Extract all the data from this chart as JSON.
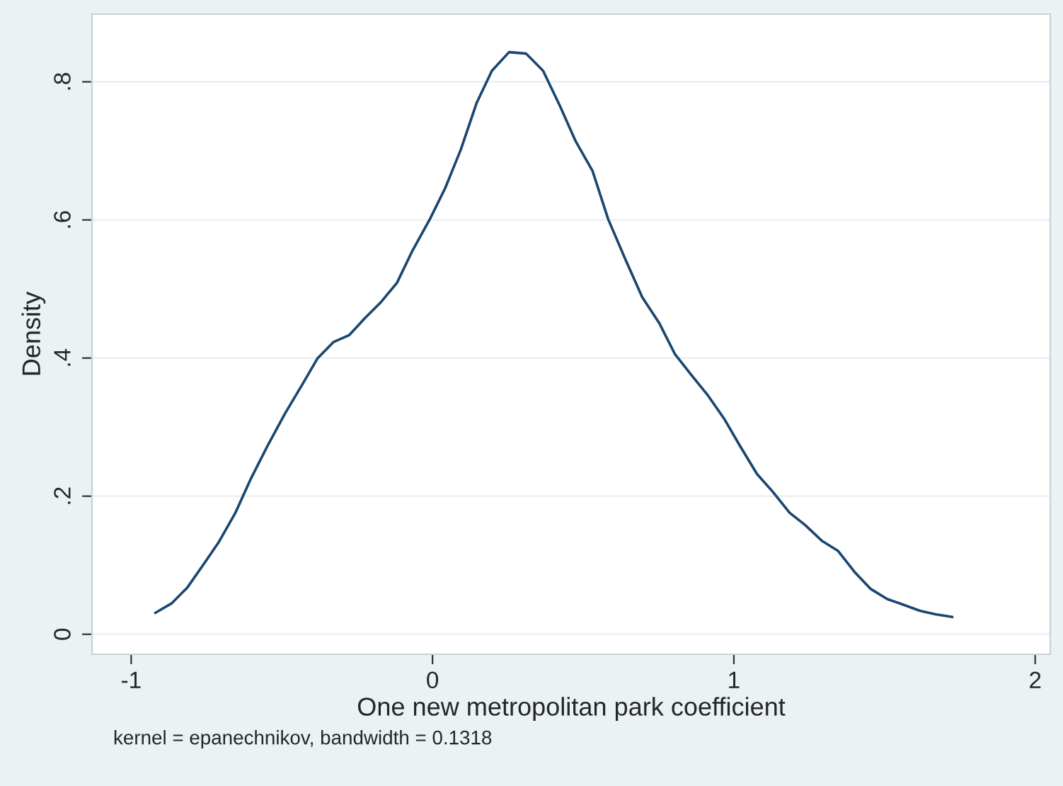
{
  "chart_data": {
    "type": "line",
    "xlabel": "One new metropolitan park coefficient",
    "ylabel": "Density",
    "annotations": [
      "kernel = epanechnikov, bandwidth = 0.1318"
    ],
    "x": [
      -0.92,
      -0.865,
      -0.813,
      -0.757,
      -0.71,
      -0.654,
      -0.602,
      -0.545,
      -0.489,
      -0.433,
      -0.381,
      -0.329,
      -0.277,
      -0.226,
      -0.169,
      -0.118,
      -0.066,
      -0.009,
      0.042,
      0.094,
      0.146,
      0.197,
      0.254,
      0.31,
      0.367,
      0.423,
      0.475,
      0.531,
      0.583,
      0.639,
      0.696,
      0.752,
      0.804,
      0.86,
      0.912,
      0.968,
      1.02,
      1.077,
      1.128,
      1.185,
      1.237,
      1.293,
      1.345,
      1.401,
      1.453,
      1.509,
      1.561,
      1.617,
      1.669,
      1.725
    ],
    "series": [
      {
        "color": "#1a476f",
        "values": [
          0.031,
          0.045,
          0.068,
          0.103,
          0.133,
          0.176,
          0.226,
          0.275,
          0.32,
          0.361,
          0.4,
          0.423,
          0.433,
          0.457,
          0.482,
          0.509,
          0.556,
          0.601,
          0.646,
          0.702,
          0.769,
          0.816,
          0.843,
          0.841,
          0.816,
          0.765,
          0.714,
          0.671,
          0.601,
          0.544,
          0.488,
          0.451,
          0.406,
          0.375,
          0.347,
          0.312,
          0.273,
          0.232,
          0.207,
          0.176,
          0.158,
          0.135,
          0.121,
          0.09,
          0.066,
          0.051,
          0.043,
          0.034,
          0.029,
          0.025
        ]
      }
    ],
    "xlim": [
      -1.13,
      2.05
    ],
    "ylim": [
      -0.029,
      0.898
    ],
    "xticks": [
      -1,
      0,
      1,
      2
    ],
    "yticks": [
      0,
      {
        "value": 0.2,
        "label": ".2"
      },
      {
        "value": 0.4,
        "label": ".4"
      },
      {
        "value": 0.6,
        "label": ".6"
      },
      {
        "value": 0.8,
        "label": ".8"
      }
    ],
    "grid": "y",
    "line_style": "solid",
    "marker": "none"
  }
}
